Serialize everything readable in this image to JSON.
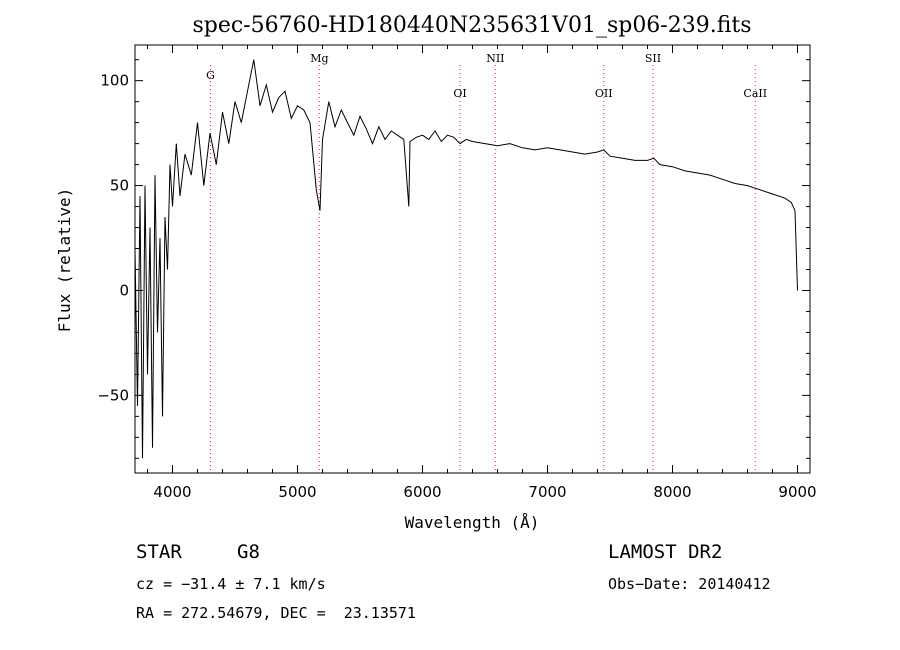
{
  "chart_data": {
    "type": "line",
    "title": "spec-56760-HD180440N235631V01_sp06-239.fits",
    "xlabel": "Wavelength (Å)",
    "ylabel": "Flux (relative)",
    "xlim": [
      3700,
      9100
    ],
    "ylim": [
      -87,
      117
    ],
    "x_ticks": [
      4000,
      5000,
      6000,
      7000,
      8000,
      9000
    ],
    "y_ticks": [
      -50,
      0,
      50,
      100
    ],
    "x_tick_labels": [
      "4000",
      "5000",
      "6000",
      "7000",
      "8000",
      "9000"
    ],
    "y_tick_labels": [
      "−50",
      "0",
      "50",
      "100"
    ],
    "grid": false,
    "series": [
      {
        "x": [
          3700,
          3720,
          3740,
          3760,
          3780,
          3800,
          3820,
          3840,
          3860,
          3880,
          3900,
          3920,
          3940,
          3960,
          3980,
          4000,
          4030,
          4060,
          4100,
          4150,
          4200,
          4250,
          4300,
          4350,
          4400,
          4450,
          4500,
          4550,
          4600,
          4650,
          4700,
          4750,
          4800,
          4850,
          4900,
          4950,
          5000,
          5050,
          5100,
          5150,
          5180,
          5200,
          5250,
          5300,
          5350,
          5400,
          5450,
          5500,
          5550,
          5600,
          5650,
          5700,
          5750,
          5800,
          5850,
          5890,
          5900,
          5950,
          6000,
          6050,
          6100,
          6150,
          6200,
          6250,
          6300,
          6350,
          6400,
          6500,
          6600,
          6700,
          6800,
          6900,
          7000,
          7100,
          7200,
          7300,
          7400,
          7450,
          7500,
          7600,
          7700,
          7800,
          7850,
          7900,
          8000,
          8100,
          8200,
          8300,
          8400,
          8500,
          8600,
          8700,
          8800,
          8900,
          8950,
          8980,
          9000
        ],
        "y": [
          20,
          -55,
          45,
          -80,
          50,
          -40,
          30,
          -75,
          55,
          -20,
          25,
          -60,
          35,
          10,
          60,
          40,
          70,
          45,
          65,
          55,
          80,
          50,
          75,
          60,
          85,
          70,
          90,
          80,
          95,
          110,
          88,
          98,
          85,
          92,
          95,
          82,
          88,
          86,
          80,
          48,
          38,
          72,
          90,
          78,
          86,
          80,
          74,
          83,
          77,
          70,
          78,
          72,
          76,
          74,
          72,
          40,
          71,
          73,
          74,
          72,
          76,
          71,
          74,
          73,
          70,
          72,
          71,
          70,
          69,
          70,
          68,
          67,
          68,
          67,
          66,
          65,
          66,
          67,
          64,
          63,
          62,
          62,
          63,
          60,
          59,
          57,
          56,
          55,
          53,
          51,
          50,
          48,
          46,
          44,
          42,
          38,
          0
        ],
        "color": "#000000"
      }
    ],
    "line_markers": [
      {
        "label": "G",
        "x": 4304
      },
      {
        "label": "Mg",
        "x": 5175
      },
      {
        "label": "OI",
        "x": 6300
      },
      {
        "label": "NII",
        "x": 6583
      },
      {
        "label": "OII",
        "x": 7450
      },
      {
        "label": "SII",
        "x": 7844
      },
      {
        "label": "CaII",
        "x": 8662
      }
    ],
    "marker_color": "#cc3333"
  },
  "info": {
    "object_class": "STAR",
    "subclass": "G8",
    "cz": "cz = −31.4 ± 7.1 km/s",
    "coords": "RA = 272.54679, DEC =  23.13571",
    "survey": "LAMOST DR2",
    "obs_date": "Obs−Date: 20140412"
  }
}
